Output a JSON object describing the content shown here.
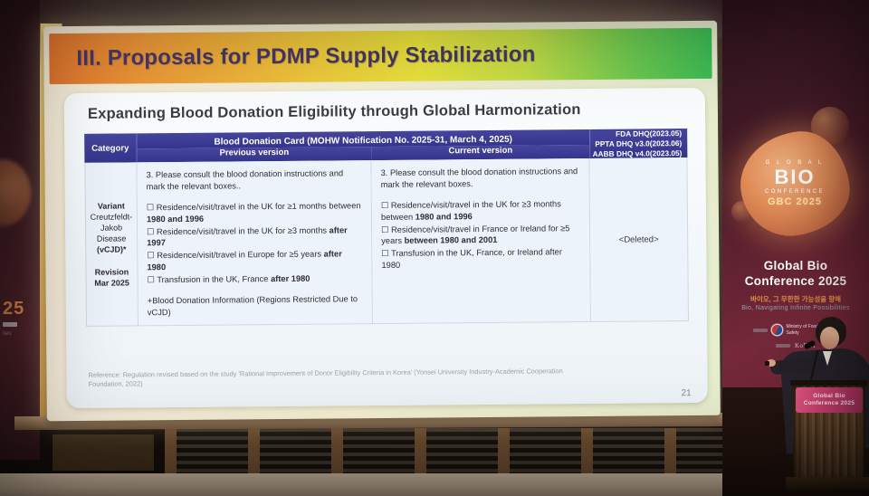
{
  "slide": {
    "title": "III. Proposals for PDMP Supply Stabilization",
    "subtitle": "Expanding Blood Donation Eligibility through Global Harmonization",
    "page_number": "21",
    "reference": "Reference: Regulation revised based on the study 'Rational Improvement of Donor Eligibility Criteria in Korea' (Yonsei University Industry-Academic Cooperation Foundation, 2022)",
    "table": {
      "header": {
        "category": "Category",
        "card_title": "Blood Donation Card (MOHW Notification No. 2025-31, March 4, 2025)",
        "previous": "Previous version",
        "current": "Current version",
        "dhq_lines": [
          "FDA DHQ(2023.05)",
          "PPTA DHQ v3.0(2023.06)",
          "AABB DHQ v4.0(2023.05)"
        ]
      },
      "row": {
        "category_lines": [
          "Variant",
          "Creutzfeldt-Jakob Disease",
          "(vCJD)*",
          "Revision",
          "Mar 2025"
        ],
        "previous": {
          "intro": "3. Please consult the blood donation instructions and mark the relevant boxes..",
          "items": [
            {
              "normal": "☐ Residence/visit/travel in the UK for ≥1 months between ",
              "bold": "1980 and 1996"
            },
            {
              "normal": "☐ Residence/visit/travel in the UK for ≥3 months ",
              "bold": "after 1997"
            },
            {
              "normal": "☐ Residence/visit/travel in Europe for ≥5 years ",
              "bold": "after 1980"
            },
            {
              "normal": "☐ Transfusion in the UK, France ",
              "bold": "after 1980"
            }
          ],
          "footnote": "+Blood Donation Information (Regions Restricted Due to vCJD)"
        },
        "current": {
          "intro": "3. Please consult the blood donation instructions and mark the relevant boxes.",
          "items": [
            {
              "normal": "☐ Residence/visit/travel in the UK for ≥3 months between ",
              "bold": "1980 and 1996"
            },
            {
              "normal": "☐ Residence/visit/travel in France or Ireland for ≥5 years ",
              "bold": "between 1980 and 2001"
            },
            {
              "normal": "☐ Transfusion in the UK, France, or Ireland after 1980",
              "bold": ""
            }
          ]
        },
        "dhq_cell": "<Deleted>"
      }
    }
  },
  "right_banner": {
    "logo": {
      "global": "G L O B A L",
      "bio": "BIO",
      "conference": "CONFERENCE",
      "gbc": "GBC 2025"
    },
    "title_line1": "Global Bio",
    "title_line2": "Conference 2025",
    "korean_tagline": "바이오, 그 무한한 가능성을 향해",
    "english_tagline": "Bio, Navigating Infinite Possibilities",
    "ministry": "Ministry of Food and Drug Safety",
    "organizer": "KoBIA"
  },
  "left_banner": {
    "partial_number": "25",
    "partial_text": "ties"
  },
  "podium": {
    "sign_line1": "Global Bio",
    "sign_line2": "Conference 2025"
  },
  "colors": {
    "banner_gradient_left": "#e2762f",
    "banner_gradient_mid": "#ece63e",
    "banner_gradient_right": "#3dbd55",
    "table_header_purple": "#3a3a92",
    "title_text": "#46386b",
    "conference_blob_orange": "#e08c58",
    "podium_sign_pink": "#cc4070"
  }
}
